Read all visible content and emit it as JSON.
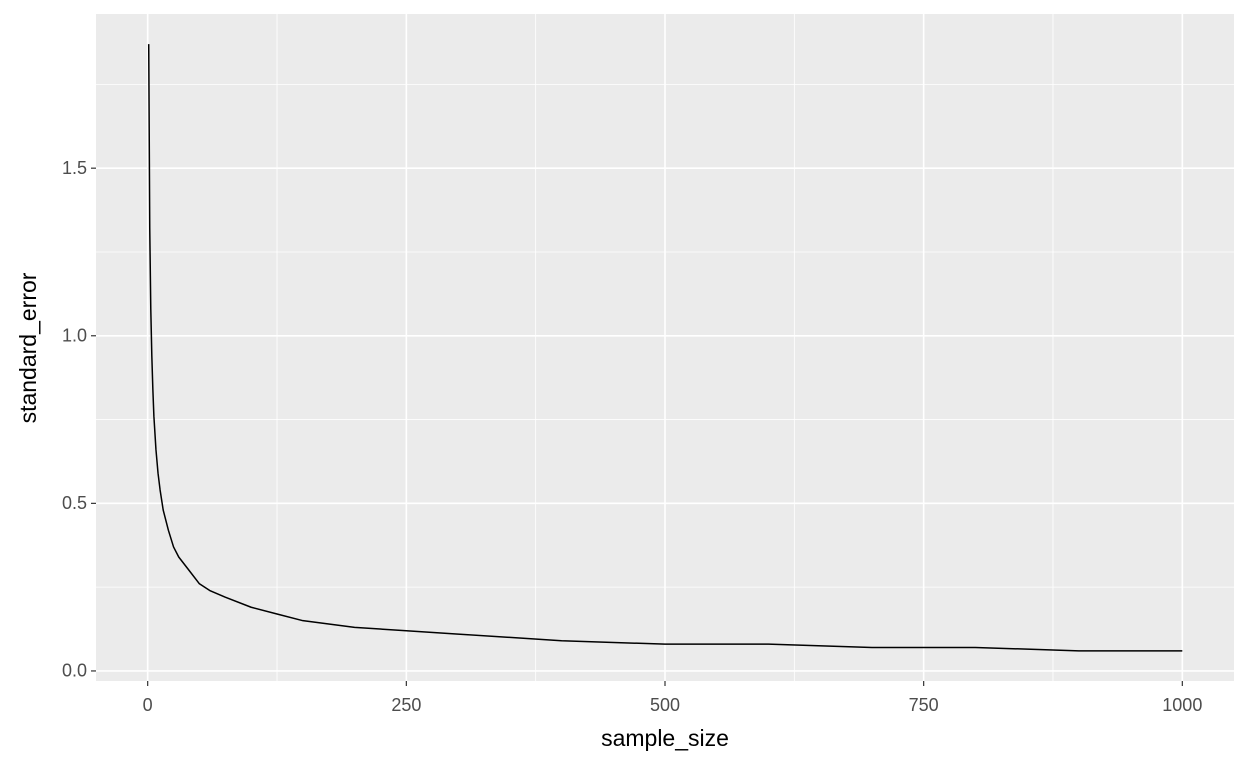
{
  "chart_data": {
    "type": "line",
    "x_label": "sample_size",
    "y_label": "standard_error",
    "series": [
      {
        "color": "#000000",
        "x": [
          1,
          2,
          3,
          4,
          5,
          6,
          8,
          10,
          12,
          15,
          20,
          25,
          30,
          40,
          50,
          60,
          75,
          100,
          125,
          150,
          200,
          250,
          300,
          400,
          500,
          600,
          700,
          800,
          900,
          1000
        ],
        "values": [
          1.87,
          1.32,
          1.08,
          0.94,
          0.84,
          0.76,
          0.66,
          0.59,
          0.54,
          0.48,
          0.42,
          0.37,
          0.34,
          0.3,
          0.26,
          0.24,
          0.22,
          0.19,
          0.17,
          0.15,
          0.13,
          0.12,
          0.11,
          0.09,
          0.08,
          0.08,
          0.07,
          0.07,
          0.06,
          0.06
        ]
      }
    ],
    "xlim": [
      -49.95,
      1049.95
    ],
    "xticks": [
      0,
      250,
      500,
      750,
      1000
    ],
    "ylim": [
      -0.03,
      1.96
    ],
    "yticks": [
      {
        "value": 0,
        "label": "0.0"
      },
      0.5,
      {
        "value": 1,
        "label": "1.0"
      },
      1.5
    ],
    "grid": true,
    "minor_grid": true
  }
}
